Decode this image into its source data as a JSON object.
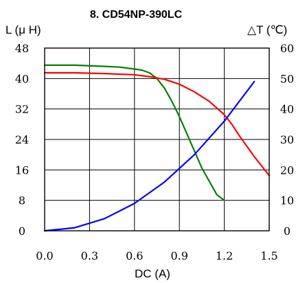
{
  "chart_data": {
    "type": "line",
    "title": "8. CD54NP-390LC",
    "xlabel": "DC (A)",
    "ylabel_left": "L (μ H)",
    "ylabel_right": "△T (℃)",
    "xlim": [
      0,
      1.5
    ],
    "ylim_left": [
      0,
      48
    ],
    "ylim_right": [
      0,
      60
    ],
    "x_ticks": [
      "0.0",
      "0.3",
      "0.6",
      "0.9",
      "1.2",
      "1.5"
    ],
    "y_ticks_left": [
      "0",
      "8",
      "16",
      "24",
      "32",
      "40",
      "48"
    ],
    "y_ticks_right": [
      "0",
      "10",
      "20",
      "30",
      "40",
      "50",
      "60"
    ],
    "grid": true,
    "series": [
      {
        "color": "#008000",
        "axis": "left",
        "x": [
          0.0,
          0.2,
          0.4,
          0.5,
          0.6,
          0.65,
          0.7,
          0.75,
          0.8,
          0.85,
          0.9,
          0.95,
          1.0,
          1.05,
          1.1,
          1.15,
          1.2
        ],
        "y": [
          43.5,
          43.5,
          43.2,
          43.0,
          42.5,
          42.2,
          41.5,
          40.0,
          37.5,
          34.0,
          30.0,
          25.5,
          21.0,
          16.5,
          13.0,
          9.5,
          8.0
        ]
      },
      {
        "color": "#ff0000",
        "axis": "left",
        "x": [
          0.0,
          0.2,
          0.4,
          0.6,
          0.7,
          0.8,
          0.9,
          1.0,
          1.1,
          1.2,
          1.25,
          1.3,
          1.4,
          1.5
        ],
        "y": [
          41.5,
          41.5,
          41.3,
          41.0,
          40.5,
          39.8,
          38.5,
          36.5,
          34.0,
          30.5,
          28.0,
          25.0,
          19.5,
          14.5
        ]
      },
      {
        "color": "#0000ff",
        "axis": "right",
        "x": [
          0.0,
          0.2,
          0.4,
          0.6,
          0.8,
          1.0,
          1.2,
          1.4
        ],
        "y": [
          0,
          1,
          4,
          9,
          16,
          25,
          36,
          49
        ]
      }
    ]
  }
}
